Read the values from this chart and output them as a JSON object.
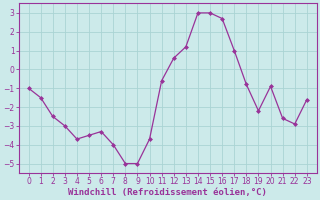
{
  "x": [
    0,
    1,
    2,
    3,
    4,
    5,
    6,
    7,
    8,
    9,
    10,
    11,
    12,
    13,
    14,
    15,
    16,
    17,
    18,
    19,
    20,
    21,
    22,
    23
  ],
  "y": [
    -1,
    -1.5,
    -2.5,
    -3,
    -3.7,
    -3.5,
    -3.3,
    -4.0,
    -5.0,
    -5.0,
    -3.7,
    -0.6,
    0.6,
    1.2,
    3.0,
    3.0,
    2.7,
    1.0,
    -0.8,
    -2.2,
    -0.9,
    -2.6,
    -2.9,
    -1.6
  ],
  "line_color": "#993399",
  "marker": "D",
  "marker_size": 2,
  "line_width": 0.9,
  "bg_color": "#cceaea",
  "grid_color": "#aad4d4",
  "xlabel": "Windchill (Refroidissement éolien,°C)",
  "xlabel_fontsize": 6.5,
  "ylim": [
    -5.5,
    3.5
  ],
  "yticks": [
    -5,
    -4,
    -3,
    -2,
    -1,
    0,
    1,
    2,
    3
  ],
  "xtick_labels": [
    "0",
    "1",
    "2",
    "3",
    "4",
    "5",
    "6",
    "7",
    "8",
    "9",
    "10",
    "11",
    "12",
    "13",
    "14",
    "15",
    "16",
    "17",
    "18",
    "19",
    "20",
    "21",
    "22",
    "23"
  ],
  "tick_fontsize": 5.5,
  "spine_color": "#993399"
}
